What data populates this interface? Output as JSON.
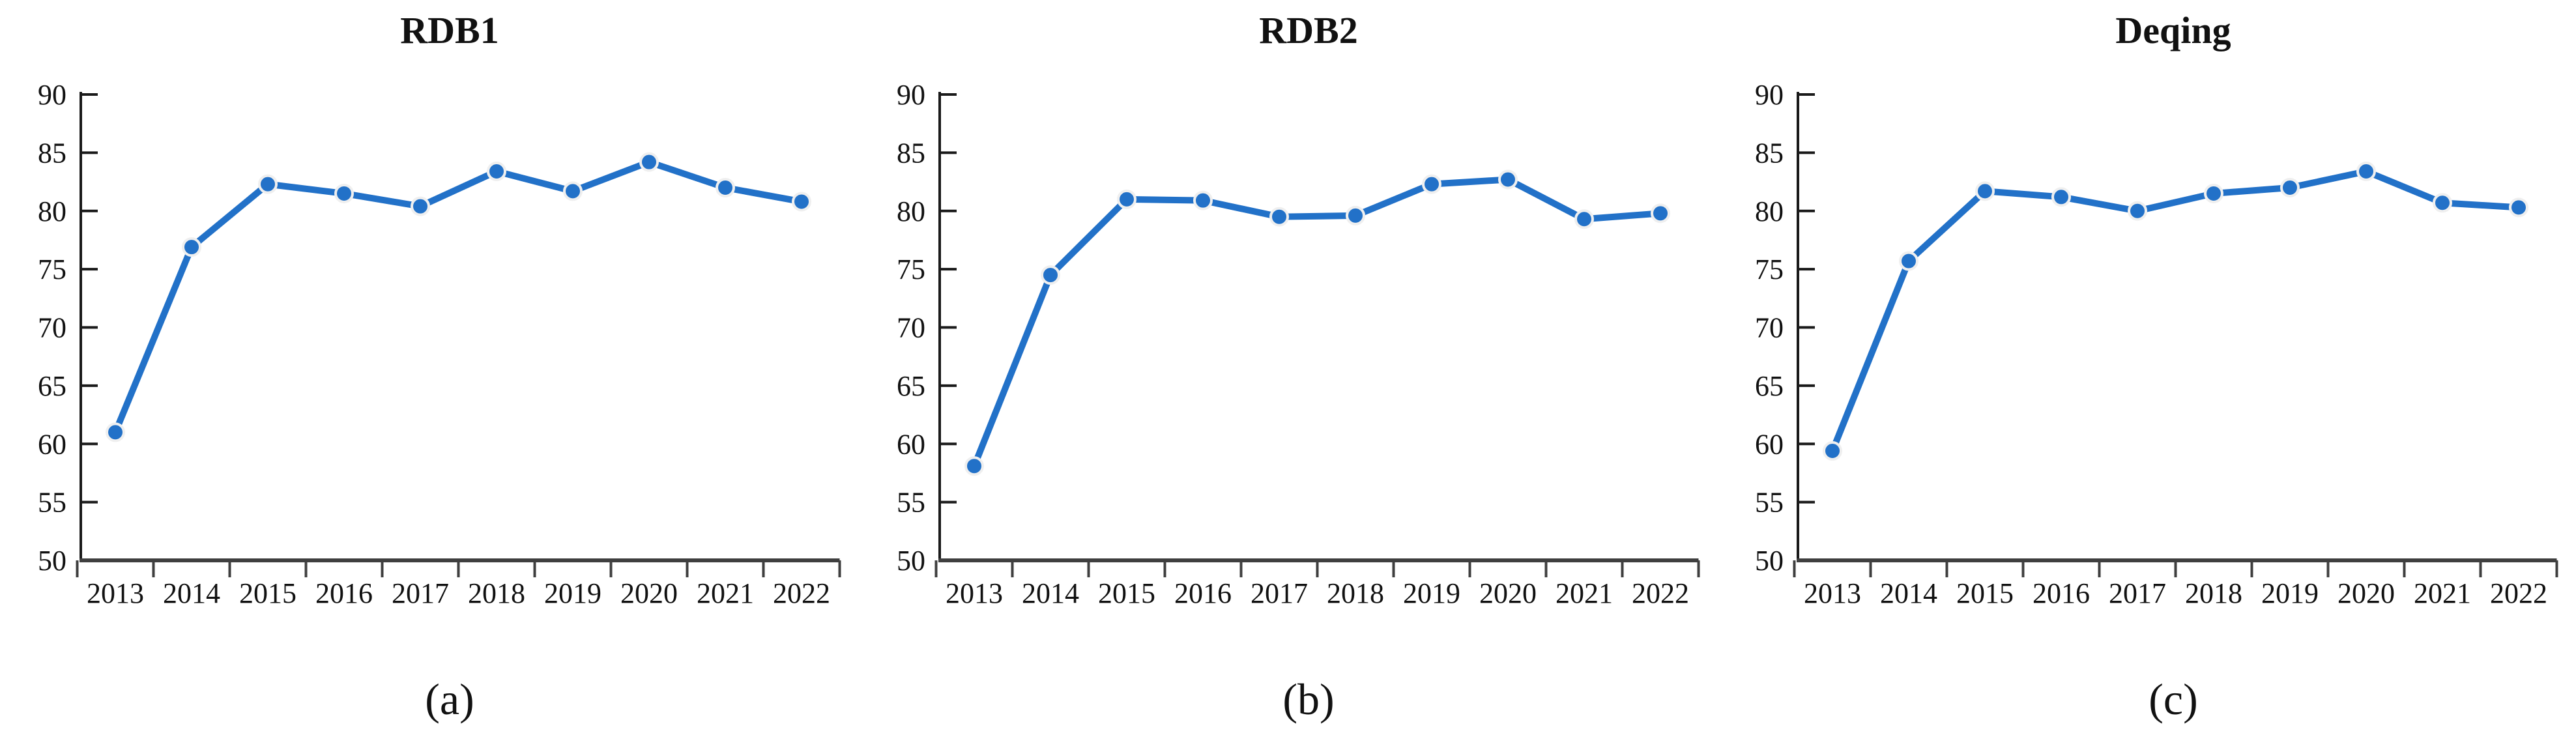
{
  "page": {
    "background": "#ffffff"
  },
  "colors": {
    "series_line": "#2271C8",
    "marker_fill": "#2271C8",
    "marker_outline": "#efefef",
    "y_axis": "#1a1a1a",
    "x_axis": "#3f3f3f",
    "text": "#111111"
  },
  "chart_data": [
    {
      "type": "line",
      "title": "RDB1",
      "caption": "(a)",
      "categories": [
        "2013",
        "2014",
        "2015",
        "2016",
        "2017",
        "2018",
        "2019",
        "2020",
        "2021",
        "2022"
      ],
      "values": [
        61.0,
        76.9,
        82.3,
        81.5,
        80.4,
        83.4,
        81.7,
        84.2,
        82.0,
        80.8
      ],
      "xlabel": "",
      "ylabel": "",
      "ylim": [
        50,
        90
      ],
      "ytick_step": 5,
      "grid": false,
      "legend": "none",
      "line_color": "#2271C8",
      "marker": "circle"
    },
    {
      "type": "line",
      "title": "RDB2",
      "caption": "(b)",
      "categories": [
        "2013",
        "2014",
        "2015",
        "2016",
        "2017",
        "2018",
        "2019",
        "2020",
        "2021",
        "2022"
      ],
      "values": [
        58.1,
        74.5,
        81.0,
        80.9,
        79.5,
        79.6,
        82.3,
        82.7,
        79.3,
        79.8
      ],
      "xlabel": "",
      "ylabel": "",
      "ylim": [
        50,
        90
      ],
      "ytick_step": 5,
      "grid": false,
      "legend": "none",
      "line_color": "#2271C8",
      "marker": "circle"
    },
    {
      "type": "line",
      "title": "Deqing",
      "caption": "(c)",
      "categories": [
        "2013",
        "2014",
        "2015",
        "2016",
        "2017",
        "2018",
        "2019",
        "2020",
        "2021",
        "2022"
      ],
      "values": [
        59.4,
        75.7,
        81.7,
        81.2,
        80.0,
        81.5,
        82.0,
        83.4,
        80.7,
        80.3
      ],
      "xlabel": "",
      "ylabel": "",
      "ylim": [
        50,
        90
      ],
      "ytick_step": 5,
      "grid": false,
      "legend": "none",
      "line_color": "#2271C8",
      "marker": "circle"
    }
  ]
}
